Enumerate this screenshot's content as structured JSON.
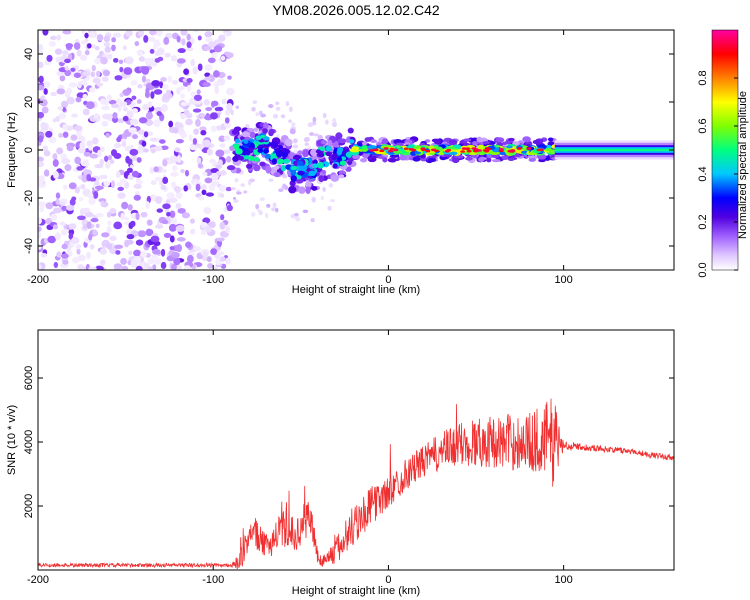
{
  "title": "YM08.2026.005.12.02.C42",
  "colors": {
    "snr_line": "#f03030",
    "frame": "#000000"
  },
  "chart_data": [
    {
      "type": "heatmap",
      "name": "spectrogram",
      "xlabel": "Height of straight line (km)",
      "ylabel": "Frequency (Hz)",
      "xlim": [
        -200,
        163
      ],
      "ylim": [
        -50,
        50
      ],
      "x_ticks": [
        -200,
        -100,
        0,
        100
      ],
      "x_tick_labels": [
        "-200",
        "-100",
        "0",
        "100"
      ],
      "y_ticks": [
        -40,
        -20,
        0,
        20,
        40
      ],
      "y_tick_labels": [
        "-40",
        "-20",
        "0",
        "20",
        "40"
      ],
      "colorbar": {
        "label": "Normalized spectral amplitude",
        "range": [
          0,
          1
        ],
        "ticks": [
          0.0,
          0.2,
          0.4,
          0.6,
          0.8
        ],
        "tick_labels": [
          "0.0",
          "0.2",
          "0.4",
          "0.6",
          "0.8"
        ],
        "colormap": [
          "#ffffff",
          "#e0c8ff",
          "#a060ff",
          "#5000e0",
          "#0000ff",
          "#00c8ff",
          "#00ff80",
          "#80ff00",
          "#ffff00",
          "#ff8000",
          "#ff0000",
          "#ff00a0"
        ]
      },
      "description_regions": [
        {
          "x_range": [
            -200,
            -90
          ],
          "level": "low",
          "spread_hz": [
            -50,
            50
          ]
        },
        {
          "x_range": [
            -90,
            -20
          ],
          "level": "medium",
          "center_hz_range": [
            -15,
            10
          ]
        },
        {
          "x_range": [
            -20,
            95
          ],
          "level": "high",
          "center_hz": 0
        },
        {
          "x_range": [
            95,
            163
          ],
          "level": "smooth",
          "center_hz": 0
        }
      ]
    },
    {
      "type": "line",
      "name": "snr",
      "xlabel": "Height of straight line (km)",
      "ylabel": "SNR (10 * v/v)",
      "xlim": [
        -200,
        163
      ],
      "ylim": [
        0,
        7500
      ],
      "x_ticks": [
        -200,
        -100,
        0,
        100
      ],
      "x_tick_labels": [
        "-200",
        "-100",
        "0",
        "100"
      ],
      "y_ticks": [
        2000,
        4000,
        6000
      ],
      "y_tick_labels": [
        "2000",
        "4000",
        "6000"
      ],
      "envelope": {
        "x": [
          -200,
          -90,
          -85,
          -78,
          -70,
          -60,
          -52,
          -45,
          -40,
          -35,
          -28,
          -20,
          -10,
          0,
          10,
          20,
          30,
          40,
          50,
          60,
          70,
          80,
          90,
          95,
          100,
          110,
          120,
          130,
          140,
          150,
          163
        ],
        "y": [
          150,
          150,
          200,
          1300,
          700,
          1300,
          1100,
          1800,
          300,
          350,
          700,
          1400,
          2000,
          2400,
          3000,
          3400,
          3700,
          3900,
          4000,
          4000,
          4000,
          4000,
          4100,
          4000,
          3900,
          3850,
          3800,
          3750,
          3700,
          3600,
          3500
        ],
        "noise": [
          60,
          60,
          300,
          500,
          400,
          600,
          500,
          700,
          200,
          250,
          500,
          700,
          600,
          500,
          500,
          500,
          600,
          700,
          800,
          800,
          900,
          900,
          1200,
          1500,
          150,
          100,
          100,
          90,
          90,
          90,
          90
        ]
      }
    }
  ]
}
